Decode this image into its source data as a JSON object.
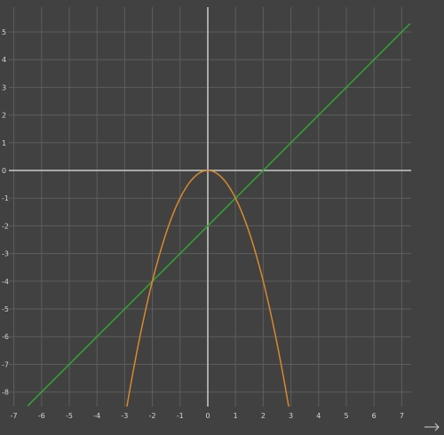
{
  "chart_data": {
    "type": "line",
    "title": "",
    "xlabel": "",
    "ylabel": "",
    "xlim": [
      -7,
      7.3
    ],
    "ylim": [
      -8.5,
      5.5
    ],
    "grid": true,
    "x_ticks": [
      "-7",
      "-6",
      "-5",
      "-4",
      "-3",
      "-2",
      "-1",
      "0",
      "1",
      "2",
      "3",
      "4",
      "5",
      "6",
      "7"
    ],
    "y_ticks": [
      "5",
      "4",
      "3",
      "2",
      "1",
      "0",
      "-1",
      "-2",
      "-3",
      "-4",
      "-5",
      "-6",
      "-7",
      "-8"
    ],
    "series": [
      {
        "expression": "y = x - 2",
        "color": "#33a333",
        "x": [
          -6.5,
          7.3
        ],
        "y": [
          -8.5,
          5.3
        ]
      },
      {
        "expression": "y = -x^2",
        "color": "#d9892b",
        "x": [
          -2.92,
          -2.5,
          -2,
          -1.5,
          -1,
          -0.5,
          0,
          0.5,
          1,
          1.5,
          2,
          2.5,
          2.92
        ],
        "y": [
          -8.5,
          -6.25,
          -4,
          -2.25,
          -1,
          -0.25,
          0,
          -0.25,
          -1,
          -2.25,
          -4,
          -6.25,
          -8.5
        ]
      }
    ],
    "axis_color": "#a9a9a9",
    "grid_color": "#5d5d5d",
    "arrow_icon": "right-arrow-icon"
  }
}
